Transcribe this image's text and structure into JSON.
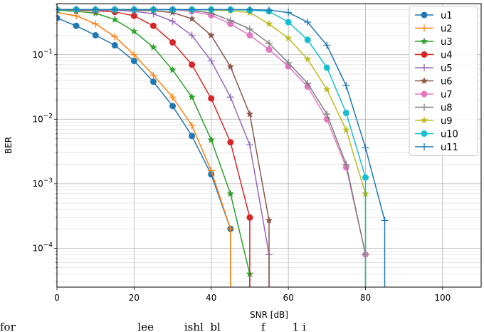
{
  "chart_data": {
    "type": "line",
    "xlabel": "SNR [dB]",
    "ylabel": "BER",
    "xlim": [
      0,
      110
    ],
    "ylim": [
      2.5e-05,
      0.62
    ],
    "yscale": "log",
    "grid": "major and minor",
    "legend_position": "top-right",
    "x_ticks": [
      "0",
      "20",
      "40",
      "60",
      "80",
      "100"
    ],
    "y_ticks": [
      {
        "base": "10",
        "exp": "−1"
      },
      {
        "base": "10",
        "exp": "−2"
      },
      {
        "base": "10",
        "exp": "−3"
      },
      {
        "base": "10",
        "exp": "−4"
      }
    ],
    "series": [
      {
        "name": "u1",
        "color": "#1f77b4",
        "marker": "circle",
        "x": [
          0,
          5,
          10,
          15,
          20,
          25,
          30,
          35,
          40,
          45,
          45
        ],
        "y": [
          0.37,
          0.28,
          0.2,
          0.14,
          0.08,
          0.038,
          0.016,
          0.0055,
          0.0014,
          0.0002,
          2e-05
        ]
      },
      {
        "name": "u2",
        "color": "#ff7f0e",
        "marker": "plus",
        "x": [
          0,
          5,
          10,
          15,
          20,
          25,
          30,
          35,
          40,
          45,
          45
        ],
        "y": [
          0.45,
          0.4,
          0.3,
          0.19,
          0.1,
          0.048,
          0.022,
          0.008,
          0.0016,
          0.0002,
          2e-05
        ]
      },
      {
        "name": "u3",
        "color": "#2ca02c",
        "marker": "star",
        "x": [
          0,
          5,
          10,
          15,
          20,
          25,
          30,
          35,
          40,
          45,
          50,
          50
        ],
        "y": [
          0.49,
          0.47,
          0.44,
          0.35,
          0.23,
          0.13,
          0.058,
          0.022,
          0.0048,
          0.0007,
          4e-05,
          2e-05
        ]
      },
      {
        "name": "u4",
        "color": "#d62728",
        "marker": "circle",
        "x": [
          0,
          5,
          10,
          15,
          20,
          25,
          30,
          35,
          40,
          45,
          50,
          50
        ],
        "y": [
          0.5,
          0.49,
          0.48,
          0.46,
          0.4,
          0.28,
          0.155,
          0.07,
          0.021,
          0.0044,
          0.0003,
          2e-05
        ]
      },
      {
        "name": "u5",
        "color": "#9467bd",
        "marker": "plus",
        "x": [
          0,
          5,
          10,
          15,
          20,
          25,
          30,
          35,
          40,
          45,
          50,
          55,
          55
        ],
        "y": [
          0.5,
          0.5,
          0.49,
          0.49,
          0.47,
          0.43,
          0.33,
          0.2,
          0.08,
          0.022,
          0.004,
          8e-05,
          2e-05
        ]
      },
      {
        "name": "u6",
        "color": "#8c564b",
        "marker": "star",
        "x": [
          0,
          5,
          10,
          15,
          20,
          25,
          30,
          35,
          40,
          45,
          50,
          55,
          55
        ],
        "y": [
          0.5,
          0.5,
          0.5,
          0.5,
          0.49,
          0.48,
          0.45,
          0.36,
          0.2,
          0.065,
          0.012,
          0.00027,
          2e-05
        ]
      },
      {
        "name": "u7",
        "color": "#e377c2",
        "marker": "circle",
        "x": [
          0,
          5,
          10,
          15,
          20,
          25,
          30,
          35,
          40,
          45,
          50,
          55,
          60,
          65,
          70,
          75,
          80
        ],
        "y": [
          0.5,
          0.5,
          0.5,
          0.5,
          0.5,
          0.5,
          0.5,
          0.47,
          0.41,
          0.3,
          0.2,
          0.12,
          0.066,
          0.032,
          0.01,
          0.0018,
          8e-05
        ]
      },
      {
        "name": "u8",
        "color": "#7f7f7f",
        "marker": "plus",
        "x": [
          0,
          5,
          10,
          15,
          20,
          25,
          30,
          35,
          40,
          45,
          50,
          55,
          60,
          65,
          70,
          75,
          80,
          80
        ],
        "y": [
          0.5,
          0.5,
          0.5,
          0.5,
          0.5,
          0.5,
          0.5,
          0.49,
          0.44,
          0.34,
          0.25,
          0.15,
          0.075,
          0.036,
          0.012,
          0.002,
          8e-05,
          2e-05
        ]
      },
      {
        "name": "u9",
        "color": "#bcbd22",
        "marker": "star",
        "x": [
          0,
          5,
          10,
          15,
          20,
          25,
          30,
          35,
          40,
          45,
          50,
          55,
          60,
          65,
          70,
          75,
          80,
          80
        ],
        "y": [
          0.5,
          0.5,
          0.5,
          0.5,
          0.5,
          0.5,
          0.5,
          0.5,
          0.49,
          0.48,
          0.45,
          0.3,
          0.18,
          0.085,
          0.029,
          0.0068,
          0.0007,
          2e-05
        ]
      },
      {
        "name": "u10",
        "color": "#17becf",
        "marker": "circle",
        "x": [
          0,
          5,
          10,
          15,
          20,
          25,
          30,
          35,
          40,
          45,
          50,
          55,
          60,
          65,
          70,
          75,
          80,
          80
        ],
        "y": [
          0.5,
          0.5,
          0.5,
          0.5,
          0.5,
          0.5,
          0.5,
          0.5,
          0.5,
          0.5,
          0.49,
          0.47,
          0.32,
          0.17,
          0.063,
          0.0125,
          0.00125,
          2e-05
        ]
      },
      {
        "name": "u11",
        "color": "#1f77b4",
        "marker": "plus",
        "x": [
          0,
          5,
          10,
          15,
          20,
          25,
          30,
          35,
          40,
          45,
          50,
          55,
          60,
          65,
          70,
          75,
          80,
          85,
          85
        ],
        "y": [
          0.5,
          0.5,
          0.5,
          0.5,
          0.5,
          0.5,
          0.5,
          0.5,
          0.5,
          0.5,
          0.5,
          0.49,
          0.45,
          0.32,
          0.14,
          0.033,
          0.0036,
          0.00027,
          2e-05
        ]
      }
    ]
  },
  "caption_fragment": "for                                    lee         ishl  bl            f        1 i"
}
